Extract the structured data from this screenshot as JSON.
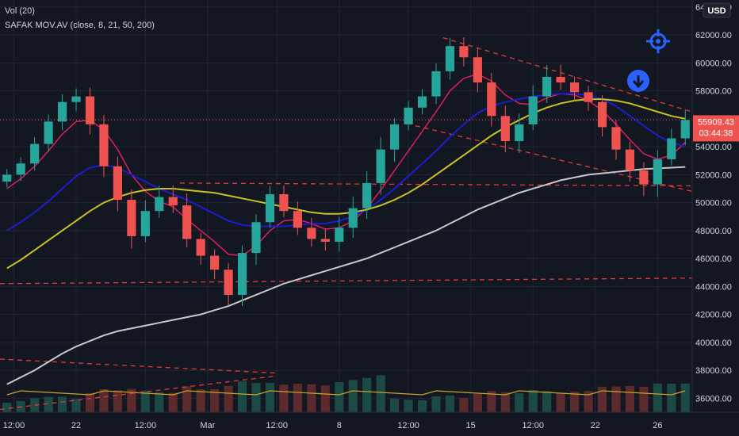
{
  "legend": {
    "volume_label": "Vol (20)",
    "indicator_label": "SAFAK  MOV.AV (close, 8, 21, 50, 200)"
  },
  "currency": "USD",
  "current_price": {
    "price": "55909.43",
    "countdown": "03:44:38",
    "value": 55909.43
  },
  "colors": {
    "background": "#131722",
    "up": "#26a69a",
    "down": "#ef5350",
    "ma8": "#e91e63",
    "ma21": "#1a1ccf",
    "ma50": "#c9c21e",
    "ma200": "#c8c8c8",
    "trend": "#e53935",
    "vol_ma": "#c9a227",
    "accent": "#2962ff"
  },
  "icons": {
    "crosshair": "crosshair-target-icon",
    "scroll_down": "arrow-down-circle-icon"
  },
  "chart_data": {
    "type": "candlestick",
    "y_axis": {
      "range": [
        35000,
        64500
      ],
      "ticks": [
        {
          "value": 36000,
          "label": "36000.00"
        },
        {
          "value": 38000,
          "label": "38000.00"
        },
        {
          "value": 40000,
          "label": "40000.00"
        },
        {
          "value": 42000,
          "label": "42000.00"
        },
        {
          "value": 44000,
          "label": "44000.00"
        },
        {
          "value": 46000,
          "label": "46000.00"
        },
        {
          "value": 48000,
          "label": "48000.00"
        },
        {
          "value": 50000,
          "label": "50000.00"
        },
        {
          "value": 52000,
          "label": "52000.00"
        },
        {
          "value": 54000,
          "label": "54000.00"
        },
        {
          "value": 56000,
          "label": "56000.00"
        },
        {
          "value": 58000,
          "label": "58000.00"
        },
        {
          "value": 60000,
          "label": "60000.00"
        },
        {
          "value": 62000,
          "label": "62000.00"
        },
        {
          "value": 64000,
          "label": "64000.00"
        }
      ]
    },
    "x_axis": {
      "range": [
        0,
        50
      ],
      "ticks": [
        {
          "value": 1,
          "label": "12:00"
        },
        {
          "value": 5.5,
          "label": "22"
        },
        {
          "value": 10.5,
          "label": "12:00"
        },
        {
          "value": 15,
          "label": "Mar"
        },
        {
          "value": 20,
          "label": "12:00"
        },
        {
          "value": 24.5,
          "label": "8"
        },
        {
          "value": 29.5,
          "label": "12:00"
        },
        {
          "value": 34,
          "label": "15"
        },
        {
          "value": 38.5,
          "label": "12:00"
        },
        {
          "value": 43,
          "label": "22"
        },
        {
          "value": 47.5,
          "label": "26"
        }
      ]
    },
    "closes": [
      52000,
      52800,
      54200,
      55800,
      57200,
      57600,
      55600,
      52600,
      50200,
      47600,
      49400,
      50400,
      49800,
      47400,
      46200,
      45200,
      43400,
      46400,
      48600,
      50600,
      49400,
      48200,
      47400,
      47200,
      48200,
      49600,
      51400,
      53800,
      55600,
      56800,
      57600,
      59400,
      61200,
      60400,
      58600,
      56200,
      54400,
      55600,
      57600,
      59000,
      58600,
      57900,
      57200,
      55400,
      53800,
      52300,
      51300,
      53100,
      54600,
      55909
    ],
    "series": [
      {
        "name": "MA 8",
        "values": [
          51000,
          51700,
          52600,
          53700,
          54900,
          55800,
          55900,
          55200,
          53800,
          52000,
          50800,
          50100,
          49700,
          48800,
          48000,
          47200,
          46300,
          46200,
          46900,
          48000,
          48700,
          48800,
          48500,
          48100,
          48200,
          48700,
          49600,
          50900,
          52300,
          53700,
          55100,
          56500,
          58000,
          58900,
          59200,
          58700,
          57700,
          57100,
          57000,
          57500,
          57800,
          57700,
          57300,
          56600,
          55600,
          54500,
          53500,
          53100,
          53400,
          54300
        ]
      },
      {
        "name": "MA 21",
        "values": [
          48000,
          48600,
          49300,
          50100,
          51000,
          51900,
          52500,
          52700,
          52500,
          52000,
          51500,
          51000,
          50600,
          50200,
          49700,
          49200,
          48700,
          48400,
          48300,
          48300,
          48300,
          48400,
          48500,
          48500,
          48700,
          49000,
          49500,
          50200,
          51000,
          51900,
          52800,
          53700,
          54700,
          55600,
          56400,
          56900,
          57200,
          57400,
          57600,
          57700,
          57800,
          57800,
          57700,
          57400,
          56900,
          56200,
          55500,
          54800,
          54300,
          54000
        ]
      },
      {
        "name": "MA 50",
        "values": [
          45300,
          45900,
          46600,
          47300,
          48000,
          48700,
          49400,
          50000,
          50400,
          50700,
          50900,
          51000,
          51000,
          50900,
          50800,
          50700,
          50500,
          50300,
          50100,
          49900,
          49700,
          49500,
          49300,
          49200,
          49200,
          49300,
          49500,
          49800,
          50200,
          50700,
          51300,
          52000,
          52700,
          53400,
          54100,
          54800,
          55400,
          55900,
          56400,
          56800,
          57100,
          57300,
          57400,
          57400,
          57300,
          57100,
          56800,
          56500,
          56200,
          56000
        ]
      },
      {
        "name": "MA 200",
        "values": [
          37000,
          37500,
          38000,
          38600,
          39200,
          39700,
          40100,
          40500,
          40800,
          41000,
          41200,
          41400,
          41600,
          41800,
          42000,
          42300,
          42600,
          43000,
          43400,
          43800,
          44200,
          44500,
          44800,
          45100,
          45400,
          45700,
          46000,
          46400,
          46800,
          47200,
          47600,
          48000,
          48500,
          49000,
          49500,
          49900,
          50300,
          50700,
          51000,
          51300,
          51600,
          51800,
          52000,
          52100,
          52200,
          52300,
          52400,
          52450,
          52500,
          52550
        ]
      }
    ],
    "trendlines": [
      {
        "from": [
          32,
          61800
        ],
        "to": [
          50,
          56500
        ],
        "style": "dashed"
      },
      {
        "from": [
          30,
          55500
        ],
        "to": [
          50,
          50800
        ],
        "style": "dashed"
      },
      {
        "from": [
          13,
          51400
        ],
        "to": [
          50,
          51200
        ],
        "style": "dashed"
      },
      {
        "from": [
          0,
          44200
        ],
        "to": [
          50,
          44600
        ],
        "style": "dashed"
      },
      {
        "from": [
          0,
          38800
        ],
        "to": [
          20,
          37800
        ],
        "style": "dashed"
      },
      {
        "from": [
          0,
          35200
        ],
        "to": [
          20,
          37600
        ],
        "style": "dashed"
      }
    ],
    "grid": true,
    "legend_position": "top-left"
  }
}
